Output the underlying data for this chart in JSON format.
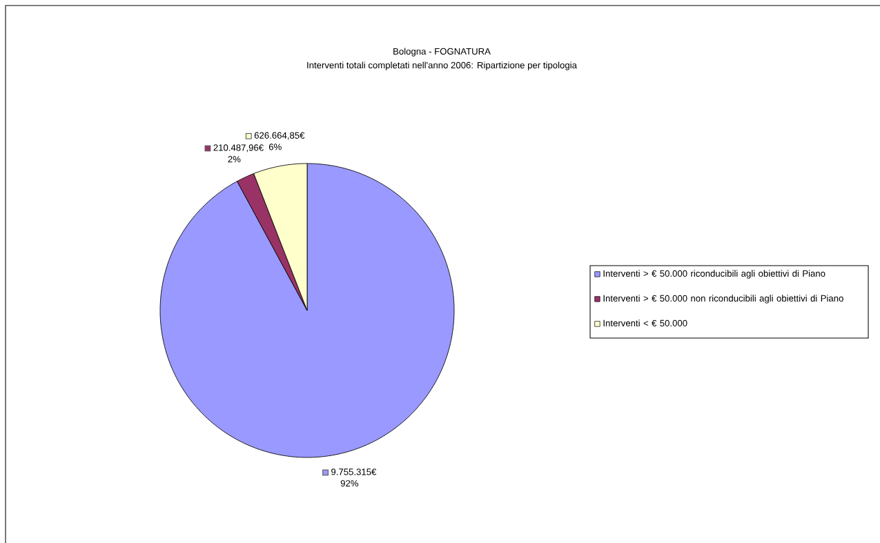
{
  "chart_data": {
    "type": "pie",
    "title": "Bologna - FOGNATURA",
    "subtitle": "Interventi totali completati nell'anno 2006: Ripartizione per tipologia",
    "categories": [
      "Interventi > € 50.000 riconducibili agli obiettivi di Piano",
      "Interventi > € 50.000 non riconducibili agli obiettivi di Piano",
      "Interventi < € 50.000"
    ],
    "values": [
      9755315,
      210487.96,
      626664.85
    ],
    "colors": [
      "#9999ff",
      "#993366",
      "#ffffcc"
    ],
    "value_labels": [
      "9.755.315€",
      "210.487,96€",
      "626.664,85€"
    ],
    "annotations": [
      "92%",
      "2%",
      "6%"
    ],
    "legend": "right"
  }
}
